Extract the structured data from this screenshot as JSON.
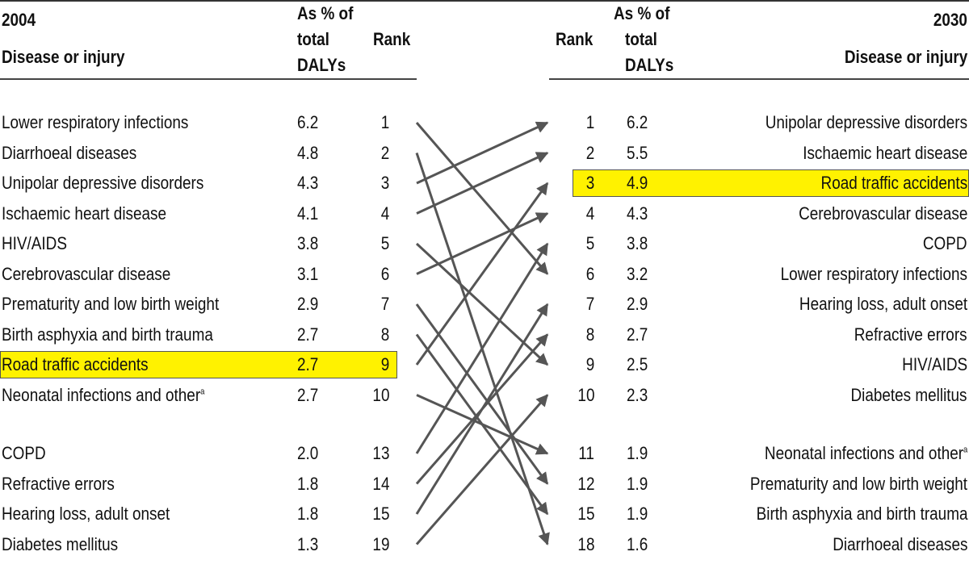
{
  "chart_data": {
    "type": "table",
    "left": {
      "year": "2004",
      "disease_label": "Disease or injury",
      "pct_label": [
        "As % of",
        "total",
        "DALYs"
      ],
      "rank_label": "Rank",
      "rows": [
        {
          "name": "Lower respiratory infections",
          "pct": "6.2",
          "rank": 1
        },
        {
          "name": "Diarrhoeal diseases",
          "pct": "4.8",
          "rank": 2
        },
        {
          "name": "Unipolar depressive disorders",
          "pct": "4.3",
          "rank": 3
        },
        {
          "name": "Ischaemic heart disease",
          "pct": "4.1",
          "rank": 4
        },
        {
          "name": "HIV/AIDS",
          "pct": "3.8",
          "rank": 5
        },
        {
          "name": "Cerebrovascular disease",
          "pct": "3.1",
          "rank": 6
        },
        {
          "name": "Prematurity and low birth weight",
          "pct": "2.9",
          "rank": 7
        },
        {
          "name": "Birth asphyxia and birth trauma",
          "pct": "2.7",
          "rank": 8
        },
        {
          "name": "Road traffic accidents",
          "pct": "2.7",
          "rank": 9,
          "highlight": true
        },
        {
          "name": "Neonatal infections and other",
          "sup": "a",
          "pct": "2.7",
          "rank": 10
        },
        {
          "name": "COPD",
          "pct": "2.0",
          "rank": 13
        },
        {
          "name": "Refractive errors",
          "pct": "1.8",
          "rank": 14
        },
        {
          "name": "Hearing loss, adult onset",
          "pct": "1.8",
          "rank": 15
        },
        {
          "name": "Diabetes mellitus",
          "pct": "1.3",
          "rank": 19
        }
      ]
    },
    "right": {
      "year": "2030",
      "disease_label": "Disease or injury",
      "pct_label": [
        "As % of",
        "total",
        "DALYs"
      ],
      "rank_label": "Rank",
      "rows": [
        {
          "name": "Unipolar depressive disorders",
          "pct": "6.2",
          "rank": 1
        },
        {
          "name": "Ischaemic heart disease",
          "pct": "5.5",
          "rank": 2
        },
        {
          "name": "Road traffic accidents",
          "pct": "4.9",
          "rank": 3,
          "highlight": true
        },
        {
          "name": "Cerebrovascular disease",
          "pct": "4.3",
          "rank": 4
        },
        {
          "name": "COPD",
          "pct": "3.8",
          "rank": 5
        },
        {
          "name": "Lower respiratory infections",
          "pct": "3.2",
          "rank": 6
        },
        {
          "name": "Hearing loss, adult onset",
          "pct": "2.9",
          "rank": 7
        },
        {
          "name": "Refractive errors",
          "pct": "2.7",
          "rank": 8
        },
        {
          "name": "HIV/AIDS",
          "pct": "2.5",
          "rank": 9
        },
        {
          "name": "Diabetes mellitus",
          "pct": "2.3",
          "rank": 10
        },
        {
          "name": "Neonatal infections and other",
          "sup": "a",
          "pct": "1.9",
          "rank": 11
        },
        {
          "name": "Prematurity and low birth weight",
          "pct": "1.9",
          "rank": 12
        },
        {
          "name": "Birth asphyxia and birth trauma",
          "pct": "1.9",
          "rank": 15
        },
        {
          "name": "Diarrhoeal diseases",
          "pct": "1.6",
          "rank": 18
        }
      ]
    },
    "links": [
      [
        0,
        5
      ],
      [
        1,
        13
      ],
      [
        2,
        0
      ],
      [
        3,
        1
      ],
      [
        4,
        8
      ],
      [
        5,
        3
      ],
      [
        6,
        11
      ],
      [
        7,
        12
      ],
      [
        8,
        2
      ],
      [
        9,
        10
      ],
      [
        10,
        4
      ],
      [
        11,
        7
      ],
      [
        12,
        6
      ],
      [
        13,
        9
      ]
    ],
    "colors": {
      "highlight": "#fff200",
      "arrow": "#555555",
      "text": "#111111"
    }
  }
}
